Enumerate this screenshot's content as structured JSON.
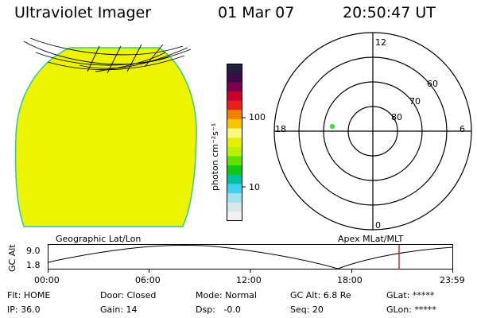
{
  "header": {
    "title": "Ultraviolet Imager",
    "date": "01 Mar 07",
    "time": "20:50:47 UT"
  },
  "colorbar": {
    "unit_label": "photon cm⁻²s⁻¹",
    "ticks": [
      "100",
      "10"
    ],
    "colors": [
      "#202040",
      "#3a0c4a",
      "#7a0050",
      "#c80030",
      "#e8201a",
      "#f08000",
      "#f4c800",
      "#f8f880",
      "#e4f000",
      "#b8f000",
      "#60e000",
      "#10c818",
      "#00c0a0",
      "#40d0f0",
      "#a0e0f0",
      "#d8e8e8",
      "#f0f0f0"
    ]
  },
  "polar_plot": {
    "mlt_labels": {
      "top": "12",
      "bottom": "0",
      "left": "18",
      "right": "6"
    },
    "lat_labels": [
      "60",
      "70",
      "80"
    ]
  },
  "timeline": {
    "left_label": "Geographic Lat/Lon",
    "right_label": "Apex MLat/MLT",
    "axis_label": "GC Alt",
    "y_ticks": [
      "9.0",
      "1.8"
    ],
    "x_ticks": [
      "00:00",
      "06:00",
      "12:00",
      "18:00",
      "23:59"
    ]
  },
  "status": {
    "flt": "Flt: HOME",
    "ip": "IP: 36.0",
    "door": "Door: Closed",
    "gain": "Gain: 14",
    "mode": "Mode: Normal",
    "dsp": "Dsp:   -0.0",
    "gc_alt": "GC Alt: 6.8 Re",
    "seq": "Seq: 20",
    "glat": "GLat: *****",
    "glon": "GLon: *****"
  },
  "colors": {
    "earth_fill": "#ecf400",
    "earth_edge": "#30c8a0",
    "point": "#40e040",
    "current_time_marker": "#c00000"
  }
}
